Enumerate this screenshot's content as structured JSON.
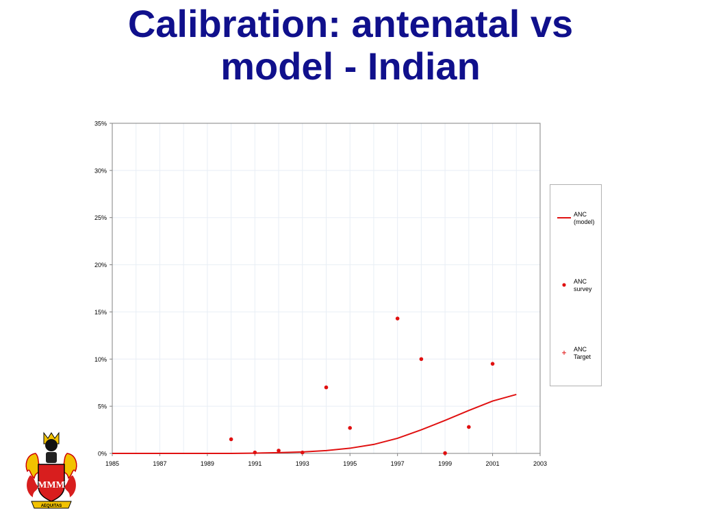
{
  "slide": {
    "title_line1": "Calibration: antenatal vs",
    "title_line2": "model - Indian"
  },
  "logo": {
    "motto": "AEQUITAS",
    "letters": "MMM"
  },
  "colors": {
    "title": "#10108c",
    "series": "#e01010",
    "grid": "#e8eef5",
    "axis": "#808080"
  },
  "chart_data": {
    "type": "scatter",
    "xlim": [
      1985,
      2003
    ],
    "ylim": [
      0,
      0.35
    ],
    "x_ticks": [
      1985,
      1987,
      1989,
      1991,
      1993,
      1995,
      1997,
      1999,
      2001,
      2003
    ],
    "y_ticks": [
      0,
      0.05,
      0.1,
      0.15,
      0.2,
      0.25,
      0.3,
      0.35
    ],
    "x_tick_labels": [
      "1985",
      "1987",
      "1989",
      "1991",
      "1993",
      "1995",
      "1997",
      "1999",
      "2001",
      "2003"
    ],
    "y_tick_labels": [
      "0%",
      "5%",
      "10%",
      "15%",
      "20%",
      "25%",
      "30%",
      "35%"
    ],
    "grid": true,
    "legend_position": "right",
    "series": [
      {
        "name": "ANC (model)",
        "label_lines": [
          "ANC",
          "(model)"
        ],
        "kind": "line",
        "x": [
          1985,
          1986,
          1987,
          1988,
          1989,
          1990,
          1991,
          1992,
          1993,
          1994,
          1995,
          1996,
          1997,
          1998,
          1999,
          2000,
          2001,
          2002
        ],
        "y": [
          0,
          0,
          0,
          0,
          0,
          0,
          0.0003,
          0.0008,
          0.0015,
          0.003,
          0.0055,
          0.0095,
          0.016,
          0.025,
          0.035,
          0.0455,
          0.0555,
          0.0625
        ]
      },
      {
        "name": "ANC survey",
        "label_lines": [
          "ANC",
          "survey"
        ],
        "kind": "scatter",
        "x": [
          1990,
          1991,
          1992,
          1993,
          1994,
          1995,
          1997,
          1998,
          1999,
          2000,
          2001
        ],
        "y": [
          0.015,
          0.001,
          0.003,
          0.001,
          0.07,
          0.027,
          0.143,
          0.1,
          0.0003,
          0.028,
          0.095
        ]
      },
      {
        "name": "ANC Target",
        "label_lines": [
          "ANC",
          "Target"
        ],
        "kind": "cross",
        "x": [],
        "y": []
      }
    ]
  }
}
